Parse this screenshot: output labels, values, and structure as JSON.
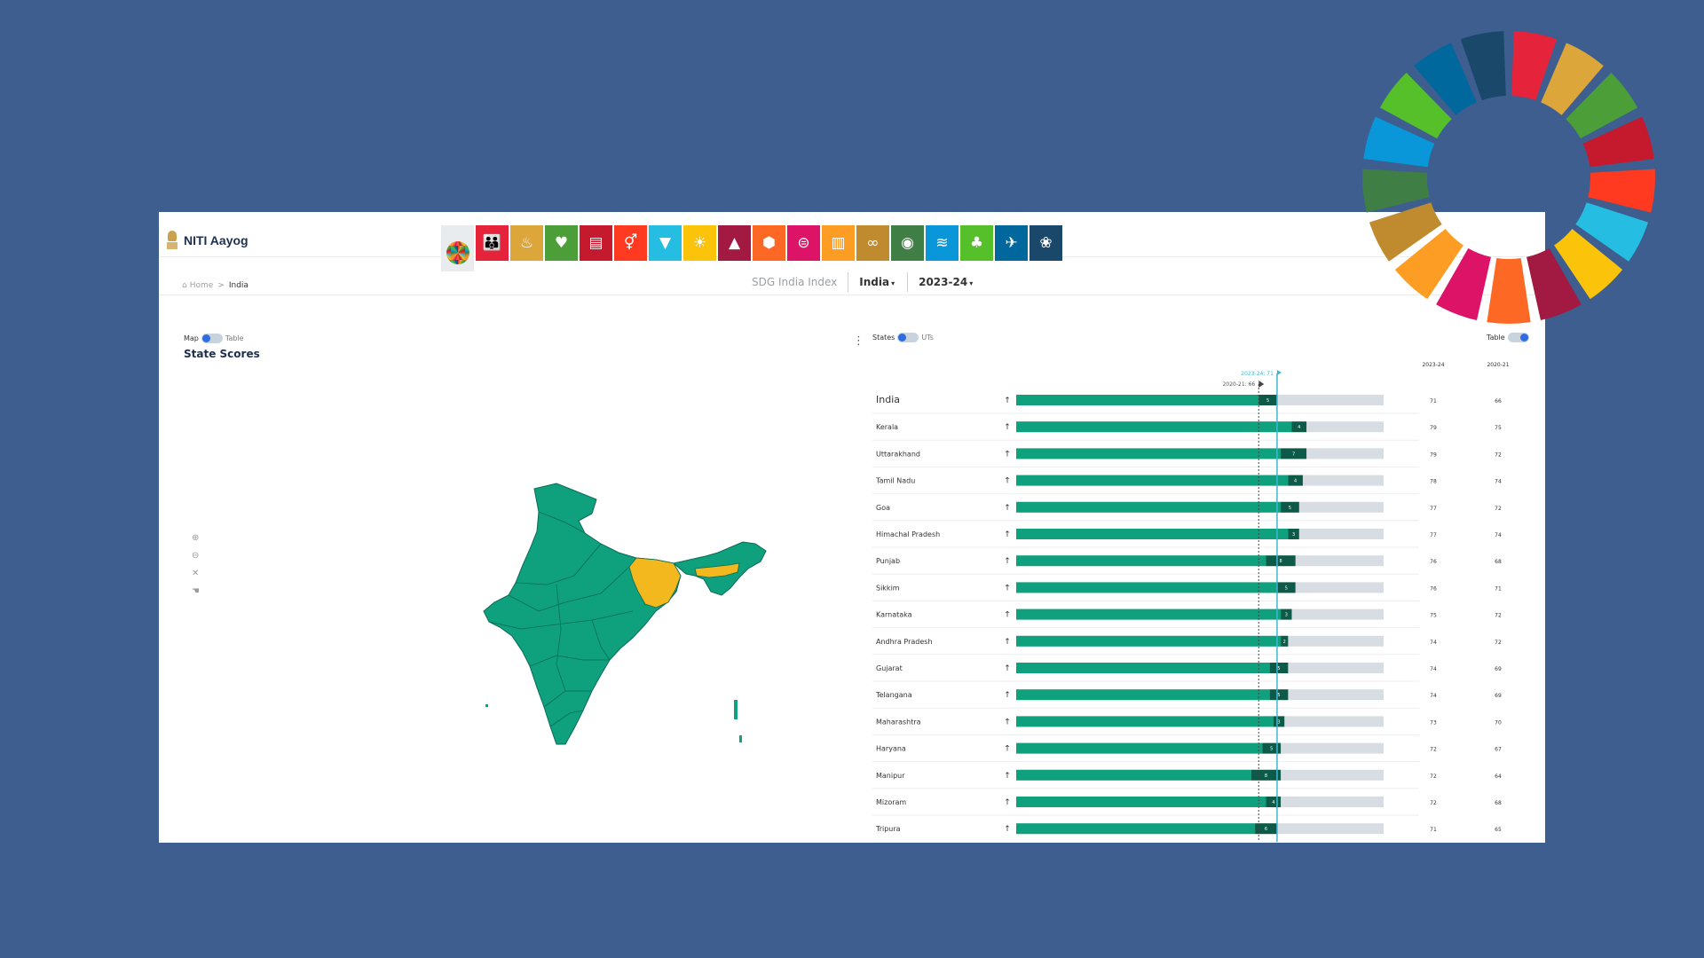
{
  "header": {
    "logo_text": "NITI Aayog",
    "index_label": "SDG India Index",
    "region": "India",
    "year": "2023-24",
    "caret": "▾"
  },
  "breadcrumb": {
    "home": "Home",
    "separator": ">",
    "current": "India"
  },
  "goals": [
    {
      "color": "#e5e7ea",
      "icon": "sdg-wheel-icon",
      "glyph": ""
    },
    {
      "color": "#e5243b",
      "icon": "no-poverty-icon",
      "glyph": "👪"
    },
    {
      "color": "#dda63a",
      "icon": "zero-hunger-icon",
      "glyph": "♨"
    },
    {
      "color": "#4c9f38",
      "icon": "good-health-icon",
      "glyph": "♥"
    },
    {
      "color": "#c5192d",
      "icon": "quality-education-icon",
      "glyph": "▤"
    },
    {
      "color": "#ff3a21",
      "icon": "gender-equality-icon",
      "glyph": "⚥"
    },
    {
      "color": "#26bde2",
      "icon": "clean-water-icon",
      "glyph": "▼"
    },
    {
      "color": "#fcc30b",
      "icon": "clean-energy-icon",
      "glyph": "☀"
    },
    {
      "color": "#a21942",
      "icon": "decent-work-icon",
      "glyph": "▲"
    },
    {
      "color": "#fd6925",
      "icon": "industry-innovation-icon",
      "glyph": "⬢"
    },
    {
      "color": "#dd1367",
      "icon": "reduced-inequalities-icon",
      "glyph": "⊜"
    },
    {
      "color": "#fd9d24",
      "icon": "sustainable-cities-icon",
      "glyph": "▥"
    },
    {
      "color": "#bf8b2e",
      "icon": "responsible-consumption-icon",
      "glyph": "∞"
    },
    {
      "color": "#3f7e44",
      "icon": "climate-action-icon",
      "glyph": "◉"
    },
    {
      "color": "#0a97d9",
      "icon": "life-below-water-icon",
      "glyph": "≋"
    },
    {
      "color": "#56c02b",
      "icon": "life-on-land-icon",
      "glyph": "♣"
    },
    {
      "color": "#00689d",
      "icon": "peace-justice-icon",
      "glyph": "✈"
    },
    {
      "color": "#19486a",
      "icon": "partnerships-icon",
      "glyph": "❀"
    }
  ],
  "left": {
    "toggle_a": "Map",
    "toggle_b": "Table",
    "title": "State Scores"
  },
  "right": {
    "toggle_a": "States",
    "toggle_b": "UTs",
    "table_toggle": "Table",
    "col_2023": "2023-24",
    "col_2020": "2020-21",
    "marker_2023": "2023-24: 71",
    "marker_2020": "2020-21: 66"
  },
  "chart_data": {
    "type": "bar",
    "xlim": [
      0,
      100
    ],
    "reference_lines": {
      "2023-24": 71,
      "2020-21": 66
    },
    "categories": [
      "India",
      "Kerala",
      "Uttarakhand",
      "Tamil Nadu",
      "Goa",
      "Himachal Pradesh",
      "Punjab",
      "Sikkim",
      "Karnataka",
      "Andhra Pradesh",
      "Gujarat",
      "Telangana",
      "Maharashtra",
      "Haryana",
      "Manipur",
      "Mizoram",
      "Tripura"
    ],
    "series": [
      {
        "name": "2023-24",
        "values": [
          71,
          79,
          79,
          78,
          77,
          77,
          76,
          76,
          75,
          74,
          74,
          74,
          73,
          72,
          72,
          72,
          71
        ]
      },
      {
        "name": "2020-21",
        "values": [
          66,
          75,
          72,
          74,
          72,
          74,
          68,
          71,
          72,
          72,
          69,
          69,
          70,
          67,
          64,
          68,
          65
        ]
      }
    ],
    "change": [
      5,
      4,
      7,
      4,
      5,
      3,
      8,
      5,
      3,
      2,
      5,
      5,
      3,
      5,
      8,
      4,
      6
    ]
  },
  "wheel_colors": [
    "#e5243b",
    "#dda63a",
    "#4c9f38",
    "#c5192d",
    "#ff3a21",
    "#26bde2",
    "#fcc30b",
    "#a21942",
    "#fd6925",
    "#dd1367",
    "#fd9d24",
    "#bf8b2e",
    "#3f7e44",
    "#0a97d9",
    "#56c02b",
    "#00689d",
    "#19486a"
  ],
  "map_colors": {
    "green": "#0fa07e",
    "yellow": "#f2b81e",
    "border": "#0a6b55"
  }
}
